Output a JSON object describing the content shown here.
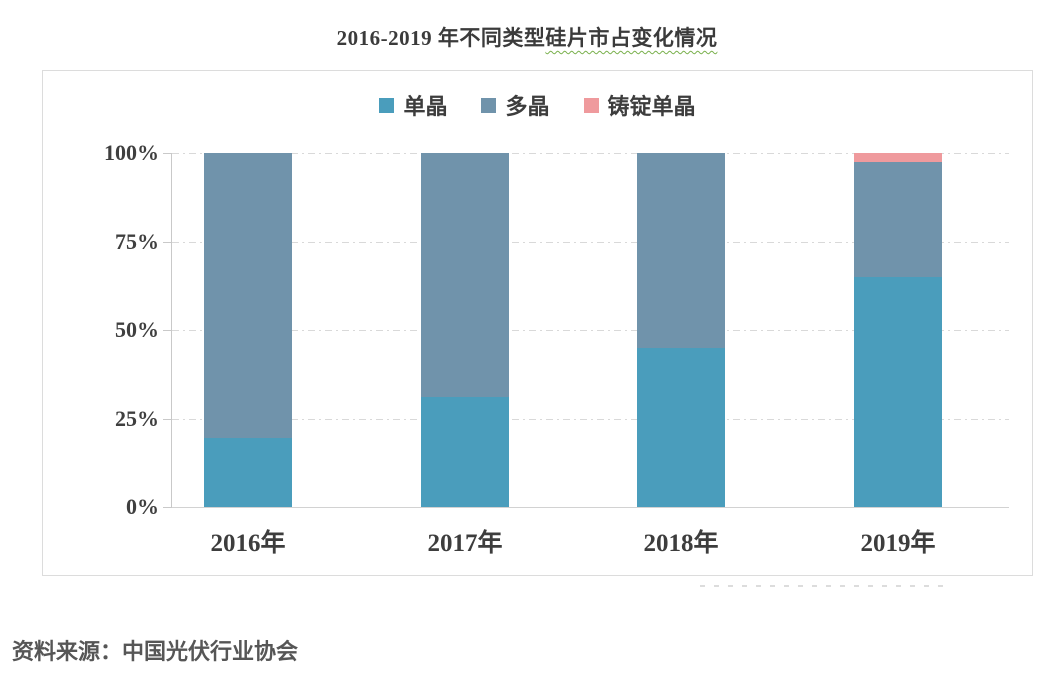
{
  "title": {
    "full": "2016-2019 年不同类型硅片市占变化情况",
    "part1": "2016-2019 年不同类型",
    "part2_underlined": "硅片市占变化情况"
  },
  "source": "资料来源：中国光伏行业协会",
  "colors": {
    "mono": "#4a9dbc",
    "multi": "#7093ab",
    "cast_mono": "#ef9a9d",
    "box_border": "#dcdcdc",
    "gridline": "#d9d9d9",
    "text": "#3d3d3d"
  },
  "chart_data": {
    "type": "bar",
    "stacked": true,
    "title": "2016-2019 年不同类型硅片市占变化情况",
    "categories": [
      "2016年",
      "2017年",
      "2018年",
      "2019年"
    ],
    "series": [
      {
        "name": "单晶",
        "color": "#4a9dbc",
        "values": [
          19.5,
          31,
          45,
          65
        ]
      },
      {
        "name": "多晶",
        "color": "#7093ab",
        "values": [
          80.5,
          69,
          55,
          32.5
        ]
      },
      {
        "name": "铸锭单晶",
        "color": "#ef9a9d",
        "values": [
          0,
          0,
          0,
          2.5
        ]
      }
    ],
    "xlabel": "",
    "ylabel": "",
    "ylim": [
      0,
      100
    ],
    "y_ticks": [
      "0%",
      "25%",
      "50%",
      "75%",
      "100%"
    ],
    "y_tick_values": [
      0,
      25,
      50,
      75,
      100
    ],
    "grid": "horizontal dash-dot",
    "legend_position": "top-center"
  }
}
